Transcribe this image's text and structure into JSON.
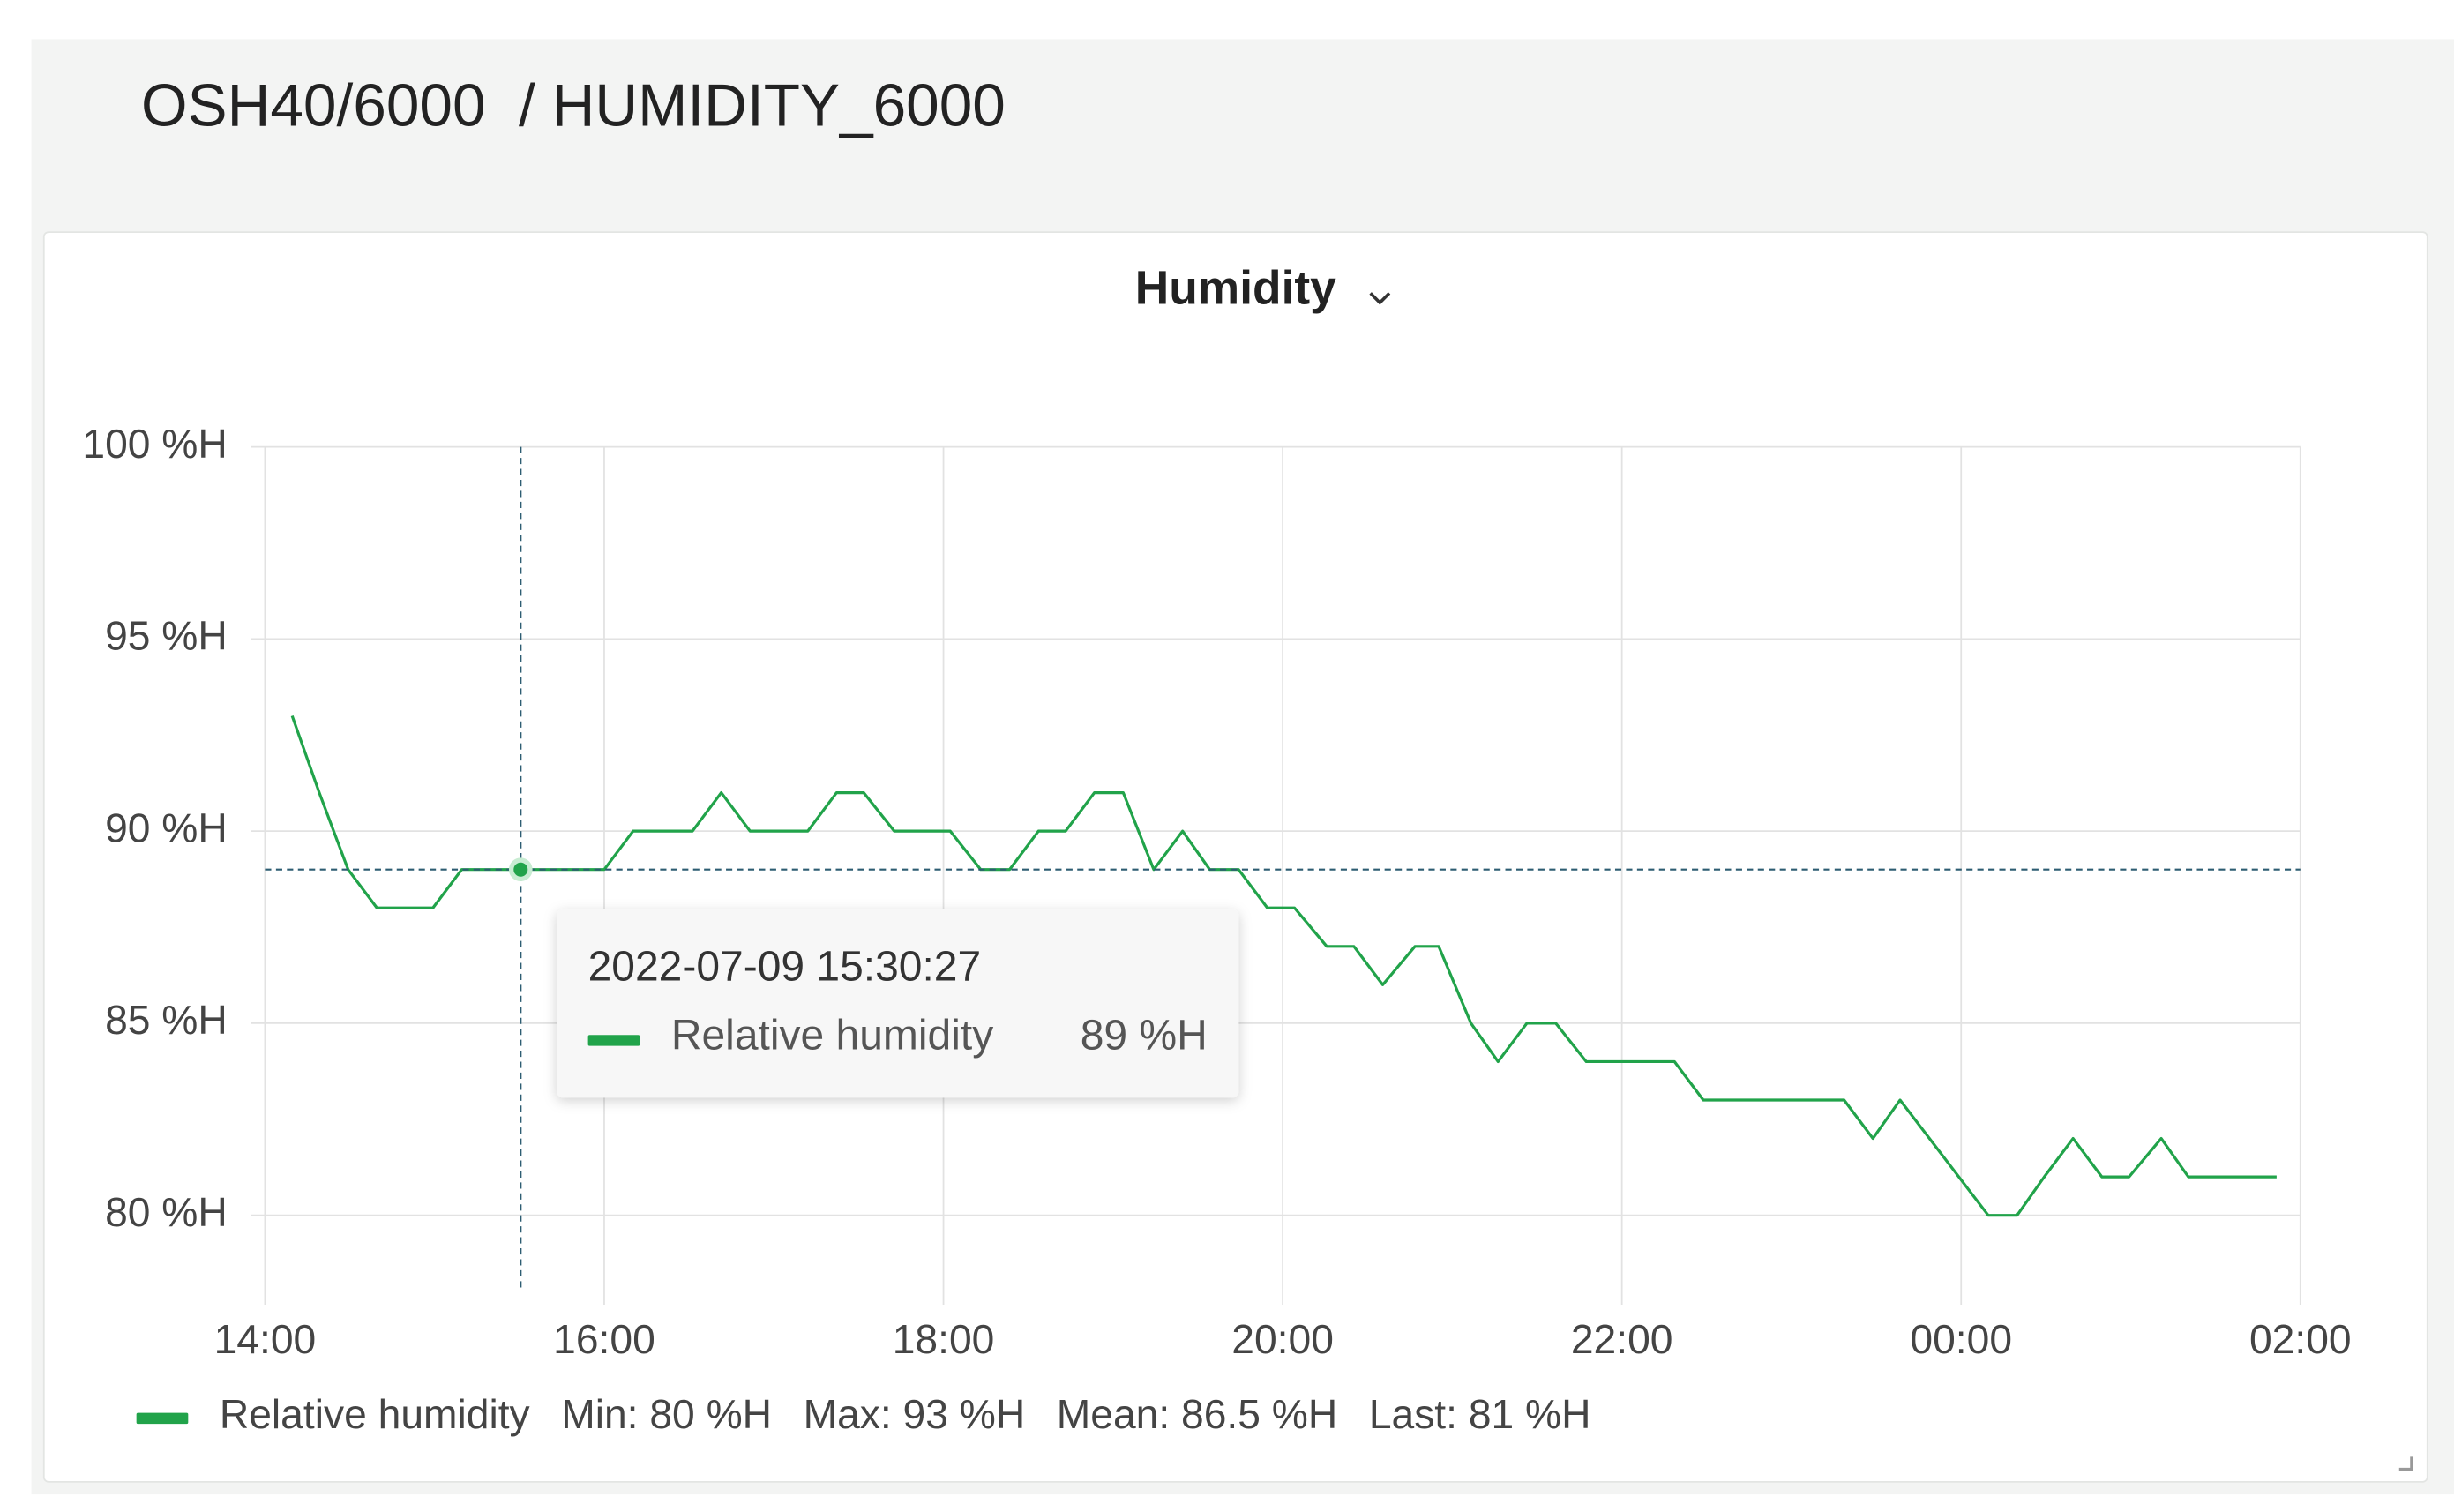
{
  "header": {
    "title": "OSH40/6000  / HUMIDITY_6000"
  },
  "chart_data": {
    "type": "line",
    "title": "Humidity",
    "x": [
      14.16,
      14.32,
      14.49,
      14.66,
      14.99,
      15.16,
      16.0,
      16.17,
      16.52,
      16.69,
      16.86,
      17.2,
      17.37,
      17.53,
      17.71,
      18.04,
      18.22,
      18.39,
      18.56,
      18.72,
      18.89,
      19.06,
      19.24,
      19.41,
      19.57,
      19.74,
      19.91,
      20.07,
      20.26,
      20.42,
      20.59,
      20.78,
      20.92,
      21.11,
      21.27,
      21.44,
      21.61,
      21.79,
      22.31,
      22.48,
      23.31,
      23.48,
      23.64,
      24.16,
      24.33,
      24.49,
      24.66,
      24.83,
      24.99,
      25.18,
      25.34,
      25.86
    ],
    "series": [
      {
        "name": "Relative humidity",
        "color": "#21a34a",
        "values": [
          93,
          91,
          89,
          88,
          88,
          89,
          89,
          90,
          90,
          91,
          90,
          90,
          91,
          91,
          90,
          90,
          89,
          89,
          90,
          90,
          91,
          91,
          89,
          90,
          89,
          89,
          88,
          88,
          87,
          87,
          86,
          87,
          87,
          85,
          84,
          85,
          85,
          84,
          84,
          83,
          83,
          82,
          83,
          80,
          80,
          81,
          82,
          81,
          81,
          82,
          81,
          81
        ]
      }
    ],
    "xlim": [
      14,
      26
    ],
    "xticks": [
      {
        "value": 14,
        "label": "14:00"
      },
      {
        "value": 16,
        "label": "16:00"
      },
      {
        "value": 18,
        "label": "18:00"
      },
      {
        "value": 20,
        "label": "20:00"
      },
      {
        "value": 22,
        "label": "22:00"
      },
      {
        "value": 24,
        "label": "00:00"
      },
      {
        "value": 26,
        "label": "02:00"
      }
    ],
    "ylim": [
      78,
      100
    ],
    "yticks": [
      {
        "value": 80,
        "label": "80 %H"
      },
      {
        "value": 85,
        "label": "85 %H"
      },
      {
        "value": 90,
        "label": "90 %H"
      },
      {
        "value": 95,
        "label": "95 %H"
      },
      {
        "value": 100,
        "label": "100 %H"
      }
    ],
    "grid": true,
    "legend": {
      "position": "bottom-left",
      "stats": [
        "Min: 80 %H",
        "Max: 93 %H",
        "Mean: 86.5 %H",
        "Last: 81 %H"
      ]
    },
    "tooltip": {
      "title": "2022-07-09 15:30:27",
      "x": 15.5075,
      "value": 89,
      "value_label": "89 %H"
    }
  }
}
